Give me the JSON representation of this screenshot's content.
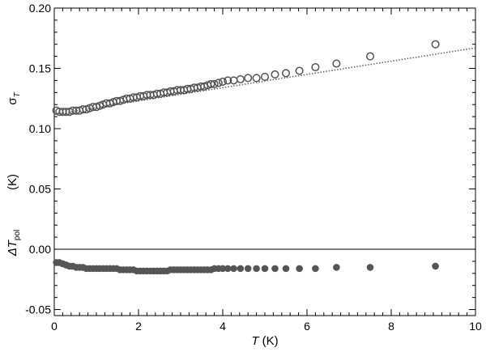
{
  "chart_data": {
    "type": "scatter",
    "xlabel": {
      "symbol": "T",
      "unit": " (K)"
    },
    "ylabel": {
      "sigma_symbol": "σ",
      "sigma_sub": "T",
      "unit": "(K)",
      "delta_symbol": "ΔT",
      "delta_sub": "pol"
    },
    "xlim": [
      0,
      10
    ],
    "ylim": [
      -0.055,
      0.2
    ],
    "x_ticks": [
      "0",
      "2",
      "4",
      "6",
      "8",
      "10"
    ],
    "y_ticks": [
      "-0.05",
      "0.00",
      "0.05",
      "0.10",
      "0.15",
      "0.20"
    ],
    "x_tick_values": [
      0,
      2,
      4,
      6,
      8,
      10
    ],
    "y_tick_values": [
      -0.05,
      0.0,
      0.05,
      0.1,
      0.15,
      0.2
    ],
    "reference_line_y": 0.0,
    "series": [
      {
        "style": "open-circle",
        "color": "#555555",
        "points": [
          [
            0.05,
            0.115
          ],
          [
            0.12,
            0.114
          ],
          [
            0.2,
            0.114
          ],
          [
            0.28,
            0.114
          ],
          [
            0.36,
            0.114
          ],
          [
            0.44,
            0.115
          ],
          [
            0.52,
            0.115
          ],
          [
            0.6,
            0.115
          ],
          [
            0.68,
            0.116
          ],
          [
            0.76,
            0.116
          ],
          [
            0.84,
            0.117
          ],
          [
            0.92,
            0.118
          ],
          [
            1.0,
            0.118
          ],
          [
            1.08,
            0.119
          ],
          [
            1.16,
            0.12
          ],
          [
            1.24,
            0.121
          ],
          [
            1.32,
            0.121
          ],
          [
            1.4,
            0.122
          ],
          [
            1.48,
            0.123
          ],
          [
            1.56,
            0.123
          ],
          [
            1.64,
            0.124
          ],
          [
            1.72,
            0.125
          ],
          [
            1.8,
            0.125
          ],
          [
            1.88,
            0.126
          ],
          [
            1.96,
            0.126
          ],
          [
            2.04,
            0.127
          ],
          [
            2.12,
            0.127
          ],
          [
            2.2,
            0.128
          ],
          [
            2.28,
            0.128
          ],
          [
            2.36,
            0.128
          ],
          [
            2.44,
            0.129
          ],
          [
            2.52,
            0.129
          ],
          [
            2.6,
            0.13
          ],
          [
            2.68,
            0.13
          ],
          [
            2.76,
            0.131
          ],
          [
            2.84,
            0.131
          ],
          [
            2.92,
            0.132
          ],
          [
            3.0,
            0.132
          ],
          [
            3.08,
            0.132
          ],
          [
            3.16,
            0.133
          ],
          [
            3.24,
            0.133
          ],
          [
            3.32,
            0.134
          ],
          [
            3.4,
            0.134
          ],
          [
            3.48,
            0.135
          ],
          [
            3.56,
            0.135
          ],
          [
            3.64,
            0.136
          ],
          [
            3.72,
            0.137
          ],
          [
            3.8,
            0.137
          ],
          [
            3.9,
            0.138
          ],
          [
            4.0,
            0.139
          ],
          [
            4.12,
            0.14
          ],
          [
            4.26,
            0.14
          ],
          [
            4.42,
            0.141
          ],
          [
            4.6,
            0.142
          ],
          [
            4.8,
            0.142
          ],
          [
            5.0,
            0.143
          ],
          [
            5.24,
            0.145
          ],
          [
            5.5,
            0.146
          ],
          [
            5.82,
            0.148
          ],
          [
            6.2,
            0.151
          ],
          [
            6.7,
            0.154
          ],
          [
            7.5,
            0.16
          ],
          [
            9.05,
            0.17
          ]
        ]
      },
      {
        "style": "filled-circle",
        "color": "#555555",
        "points": [
          [
            0.05,
            -0.011
          ],
          [
            0.12,
            -0.011
          ],
          [
            0.2,
            -0.012
          ],
          [
            0.28,
            -0.013
          ],
          [
            0.36,
            -0.014
          ],
          [
            0.44,
            -0.014
          ],
          [
            0.52,
            -0.015
          ],
          [
            0.6,
            -0.015
          ],
          [
            0.68,
            -0.015
          ],
          [
            0.76,
            -0.016
          ],
          [
            0.84,
            -0.016
          ],
          [
            0.92,
            -0.016
          ],
          [
            1.0,
            -0.016
          ],
          [
            1.08,
            -0.016
          ],
          [
            1.16,
            -0.016
          ],
          [
            1.24,
            -0.016
          ],
          [
            1.32,
            -0.016
          ],
          [
            1.4,
            -0.016
          ],
          [
            1.48,
            -0.016
          ],
          [
            1.56,
            -0.017
          ],
          [
            1.64,
            -0.017
          ],
          [
            1.72,
            -0.017
          ],
          [
            1.8,
            -0.017
          ],
          [
            1.88,
            -0.017
          ],
          [
            1.96,
            -0.018
          ],
          [
            2.04,
            -0.018
          ],
          [
            2.12,
            -0.018
          ],
          [
            2.2,
            -0.018
          ],
          [
            2.28,
            -0.018
          ],
          [
            2.36,
            -0.018
          ],
          [
            2.44,
            -0.018
          ],
          [
            2.52,
            -0.018
          ],
          [
            2.6,
            -0.018
          ],
          [
            2.68,
            -0.018
          ],
          [
            2.76,
            -0.017
          ],
          [
            2.84,
            -0.017
          ],
          [
            2.92,
            -0.017
          ],
          [
            3.0,
            -0.017
          ],
          [
            3.08,
            -0.017
          ],
          [
            3.16,
            -0.017
          ],
          [
            3.24,
            -0.017
          ],
          [
            3.32,
            -0.017
          ],
          [
            3.4,
            -0.017
          ],
          [
            3.48,
            -0.017
          ],
          [
            3.56,
            -0.017
          ],
          [
            3.64,
            -0.017
          ],
          [
            3.72,
            -0.017
          ],
          [
            3.8,
            -0.016
          ],
          [
            3.9,
            -0.016
          ],
          [
            4.0,
            -0.016
          ],
          [
            4.12,
            -0.016
          ],
          [
            4.26,
            -0.016
          ],
          [
            4.42,
            -0.016
          ],
          [
            4.6,
            -0.016
          ],
          [
            4.8,
            -0.016
          ],
          [
            5.0,
            -0.016
          ],
          [
            5.24,
            -0.016
          ],
          [
            5.5,
            -0.016
          ],
          [
            5.82,
            -0.016
          ],
          [
            6.2,
            -0.016
          ],
          [
            6.7,
            -0.015
          ],
          [
            7.5,
            -0.015
          ],
          [
            9.05,
            -0.014
          ]
        ]
      },
      {
        "style": "dotted-line",
        "color": "#666666",
        "points": [
          [
            0.0,
            0.112
          ],
          [
            10.0,
            0.167
          ]
        ]
      }
    ]
  }
}
